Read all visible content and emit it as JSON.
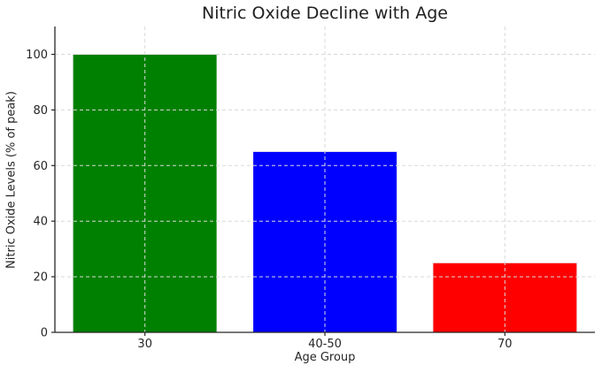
{
  "chart_data": {
    "type": "bar",
    "title": "Nitric Oxide Decline with Age",
    "xlabel": "Age Group",
    "ylabel": "Nitric Oxide Levels (% of peak)",
    "categories": [
      "30",
      "40-50",
      "70"
    ],
    "values": [
      100,
      65,
      25
    ],
    "bar_colors": [
      "#008000",
      "#0000ff",
      "#ff0000"
    ],
    "yticks": [
      0,
      20,
      40,
      60,
      80,
      100
    ],
    "ylim": [
      0,
      110
    ],
    "bar_width_frac": 0.8,
    "grid": "dashed, both axes, drawn above bars",
    "legend": "none",
    "colors": {
      "background": "#ffffff",
      "grid": "#d9d9d9",
      "spine": "#262626",
      "text": "#262626",
      "bar_edge": "#ebebeb"
    }
  }
}
